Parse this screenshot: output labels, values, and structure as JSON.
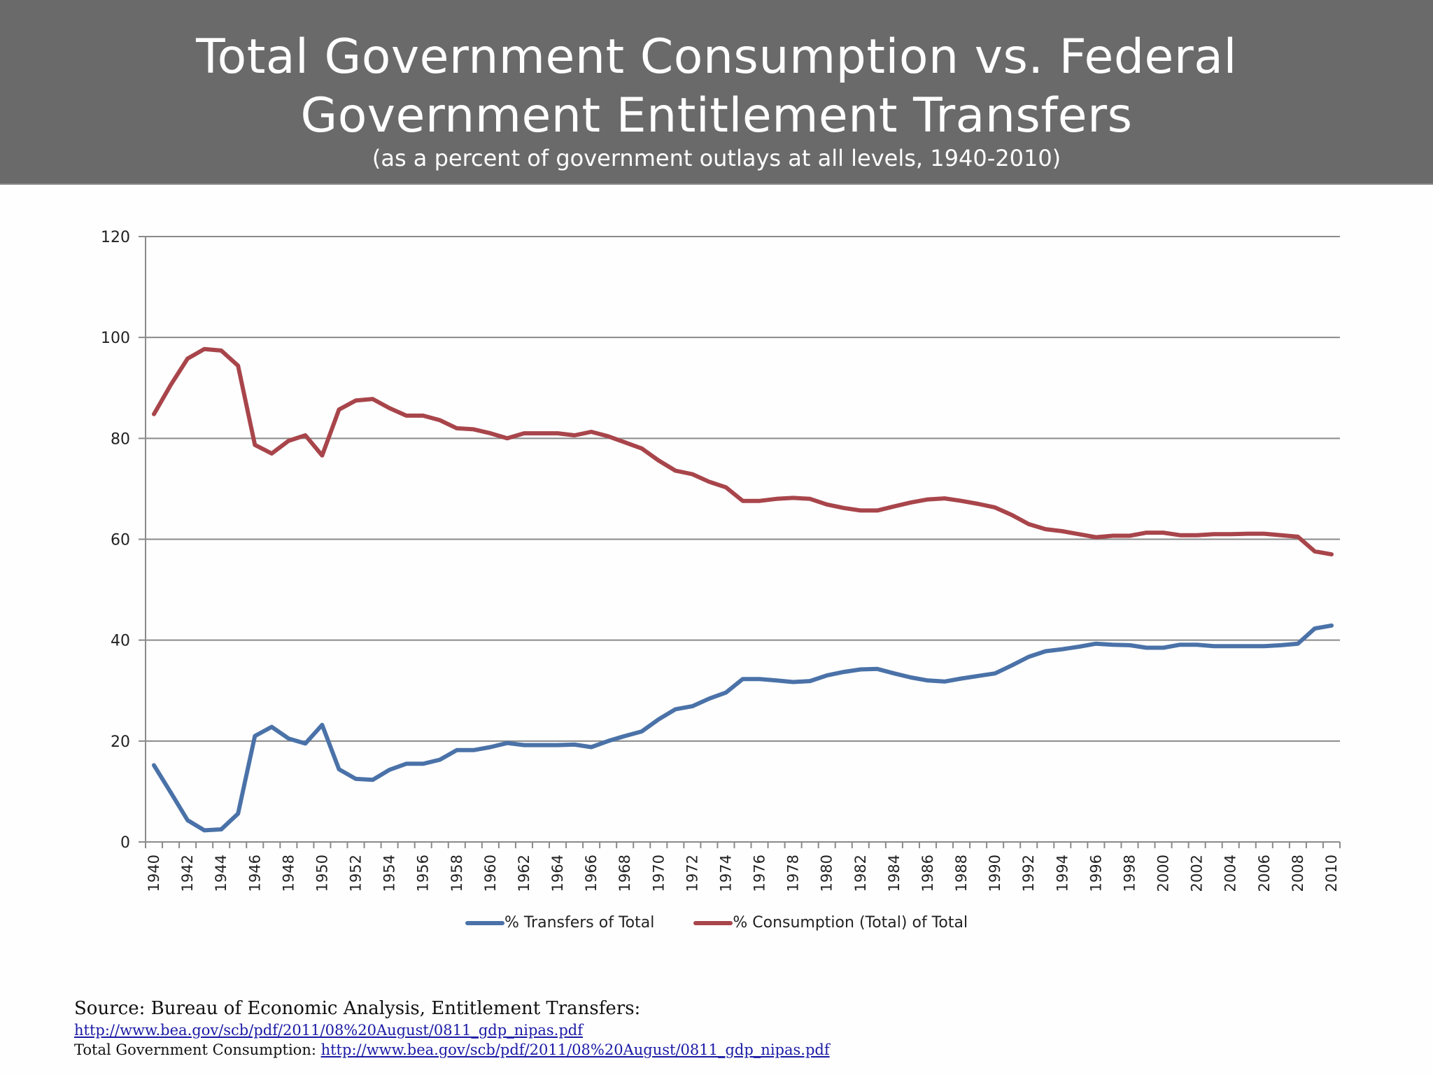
{
  "header": {
    "title_line1": "Total Government Consumption vs. Federal",
    "title_line2": "Government Entitlement Transfers",
    "subtitle": "(as a percent of government outlays at all levels, 1940-2010)",
    "background_color": "#6a6a6a"
  },
  "chart_data": {
    "type": "line",
    "title": "Total Government Consumption vs. Federal Government Entitlement Transfers",
    "subtitle": "(as a percent of government outlays at all levels, 1940-2010)",
    "xlabel": "",
    "ylabel": "",
    "ylim": [
      0,
      120
    ],
    "yticks": [
      0,
      20,
      40,
      60,
      80,
      100,
      120
    ],
    "grid": "horizontal",
    "legend_position": "bottom",
    "x": [
      1940,
      1941,
      1942,
      1943,
      1944,
      1945,
      1946,
      1947,
      1948,
      1949,
      1950,
      1951,
      1952,
      1953,
      1954,
      1955,
      1956,
      1957,
      1958,
      1959,
      1960,
      1961,
      1962,
      1963,
      1964,
      1965,
      1966,
      1967,
      1968,
      1969,
      1970,
      1971,
      1972,
      1973,
      1974,
      1975,
      1976,
      1977,
      1978,
      1979,
      1980,
      1981,
      1982,
      1983,
      1984,
      1985,
      1986,
      1987,
      1988,
      1989,
      1990,
      1991,
      1992,
      1993,
      1994,
      1995,
      1996,
      1997,
      1998,
      1999,
      2000,
      2001,
      2002,
      2003,
      2004,
      2005,
      2006,
      2007,
      2008,
      2009,
      2010
    ],
    "x_tick_labels": [
      "1940",
      "1942",
      "1944",
      "1946",
      "1948",
      "1950",
      "1952",
      "1954",
      "1956",
      "1958",
      "1960",
      "1962",
      "1964",
      "1966",
      "1968",
      "1970",
      "1972",
      "1974",
      "1976",
      "1978",
      "1980",
      "1982",
      "1984",
      "1986",
      "1988",
      "1990",
      "1992",
      "1994",
      "1996",
      "1998",
      "2000",
      "2002",
      "2004",
      "2006",
      "2008",
      "2010"
    ],
    "series": [
      {
        "name": "% Transfers of Total",
        "color": "#4a72a8",
        "values": [
          15.2,
          9.8,
          4.3,
          2.3,
          2.5,
          5.6,
          21.0,
          22.8,
          20.5,
          19.5,
          23.2,
          14.4,
          12.5,
          12.3,
          14.3,
          15.5,
          15.5,
          16.3,
          18.2,
          18.2,
          18.8,
          19.6,
          19.2,
          19.2,
          19.2,
          19.3,
          18.8,
          20.0,
          21.0,
          21.9,
          24.3,
          26.3,
          26.9,
          28.4,
          29.6,
          32.3,
          32.3,
          32.0,
          31.7,
          31.9,
          33.0,
          33.7,
          34.2,
          34.3,
          33.4,
          32.6,
          32.0,
          31.8,
          32.4,
          32.9,
          33.4,
          35.0,
          36.7,
          37.8,
          38.2,
          38.7,
          39.3,
          39.1,
          39.0,
          38.5,
          38.5,
          39.1,
          39.1,
          38.8,
          38.8,
          38.8,
          38.8,
          39.0,
          39.3,
          42.3,
          42.9
        ]
      },
      {
        "name": "% Consumption (Total) of Total",
        "color": "#a8454b",
        "values": [
          84.8,
          90.6,
          95.8,
          97.7,
          97.4,
          94.4,
          78.7,
          77.0,
          79.5,
          80.6,
          76.6,
          85.7,
          87.5,
          87.8,
          86.0,
          84.5,
          84.5,
          83.6,
          82.0,
          81.8,
          81.0,
          80.0,
          81.0,
          81.0,
          81.0,
          80.6,
          81.3,
          80.4,
          79.2,
          78.0,
          75.6,
          73.6,
          72.9,
          71.4,
          70.3,
          67.6,
          67.6,
          68.0,
          68.2,
          68.0,
          66.9,
          66.2,
          65.7,
          65.7,
          66.5,
          67.3,
          67.9,
          68.1,
          67.6,
          67.0,
          66.3,
          64.8,
          63.0,
          62.0,
          61.6,
          61.0,
          60.4,
          60.7,
          60.7,
          61.3,
          61.3,
          60.8,
          60.8,
          61.0,
          61.0,
          61.1,
          61.1,
          60.8,
          60.5,
          57.6,
          57.0
        ]
      }
    ]
  },
  "legend": {
    "items": [
      {
        "label": "% Transfers of Total",
        "color": "#4a72a8"
      },
      {
        "label": "% Consumption (Total) of Total",
        "color": "#a8454b"
      }
    ]
  },
  "source": {
    "line1": "Source:  Bureau of Economic Analysis,  Entitlement  Transfers:",
    "link1": "http://www.bea.gov/scb/pdf/2011/08%20August/0811_gdp_nipas.pdf",
    "line3_label": "Total Government Consumption: ",
    "link2": "http://www.bea.gov/scb/pdf/2011/08%20August/0811_gdp_nipas.pdf"
  }
}
